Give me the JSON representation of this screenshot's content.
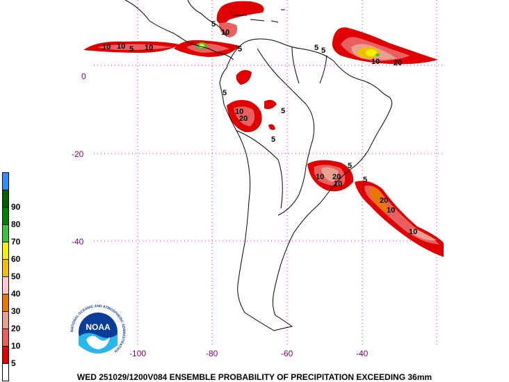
{
  "map": {
    "lon_ticks": [
      "-100",
      "-80",
      "-60",
      "-40"
    ],
    "lat_ticks": [
      "0",
      "-20",
      "-40"
    ],
    "gridline_color": "#ff00ff",
    "tick_color": "#800080",
    "coast_color": "#000000"
  },
  "colorbar": {
    "levels": [
      {
        "value": "",
        "color": "#ffffff"
      },
      {
        "value": "5",
        "color": "#e00000"
      },
      {
        "value": "10",
        "color": "#e86060"
      },
      {
        "value": "20",
        "color": "#e8a090"
      },
      {
        "value": "30",
        "color": "#e87800"
      },
      {
        "value": "40",
        "color": "#ffc8c8"
      },
      {
        "value": "50",
        "color": "#f0c000"
      },
      {
        "value": "60",
        "color": "#f0f000"
      },
      {
        "value": "70",
        "color": "#40c040"
      },
      {
        "value": "80",
        "color": "#008000"
      },
      {
        "value": "90",
        "color": "#006000"
      },
      {
        "value": "",
        "color": "#3090ff"
      }
    ]
  },
  "contour_labels": [
    {
      "text": "10",
      "id": "pac-1"
    },
    {
      "text": "10",
      "id": "pac-2"
    },
    {
      "text": "5",
      "id": "pac-3"
    },
    {
      "text": "10",
      "id": "pac-4"
    },
    {
      "text": "10",
      "id": "atl-1"
    },
    {
      "text": "20",
      "id": "atl-2"
    },
    {
      "text": "5",
      "id": "atl-3"
    },
    {
      "text": "5",
      "id": "atl-4"
    },
    {
      "text": "20",
      "id": "peru-1"
    },
    {
      "text": "10",
      "id": "peru-2"
    },
    {
      "text": "5",
      "id": "peru-3"
    },
    {
      "text": "5",
      "id": "peru-4"
    },
    {
      "text": "10",
      "id": "br-1"
    },
    {
      "text": "20",
      "id": "br-2"
    },
    {
      "text": "10",
      "id": "br-3"
    },
    {
      "text": "5",
      "id": "br-4"
    },
    {
      "text": "20",
      "id": "sa-1"
    },
    {
      "text": "10",
      "id": "sa-2"
    },
    {
      "text": "10",
      "id": "sa-3"
    },
    {
      "text": "5",
      "id": "sa-4"
    },
    {
      "text": "5",
      "id": "ca-1"
    },
    {
      "text": "10",
      "id": "ca-2"
    },
    {
      "text": "5",
      "id": "ca-3"
    },
    {
      "text": "5",
      "id": "ca-4"
    }
  ],
  "logo": {
    "text": "NOAA",
    "ring_text": "NATIONAL OCEANIC AND ATMOSPHERIC ADMINISTRATION"
  },
  "footer": {
    "caption": "WED 251029/1200V084  ENSEMBLE PROBABILITY OF PRECIPITATION EXCEEDING 36mm"
  }
}
